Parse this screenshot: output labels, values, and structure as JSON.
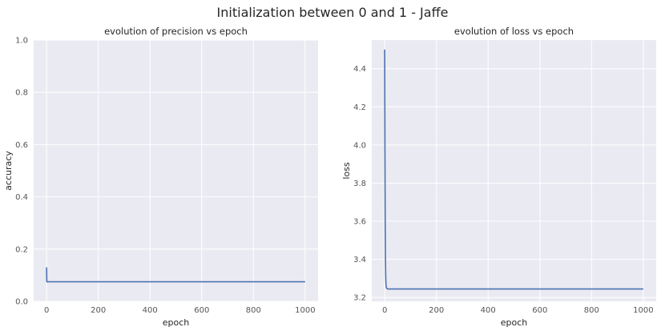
{
  "figure": {
    "title": "Initialization between 0 and 1 - Jaffe",
    "series_color": "#4c72b0",
    "background": "#eaeaf2"
  },
  "chart_data": [
    {
      "type": "line",
      "title": "evolution of precision vs epoch",
      "xlabel": "epoch",
      "ylabel": "accuracy",
      "xlim": [
        -50,
        1050
      ],
      "ylim": [
        0.0,
        1.0
      ],
      "xticks": [
        0,
        200,
        400,
        600,
        800,
        1000
      ],
      "yticks": [
        0.0,
        0.2,
        0.4,
        0.6,
        0.8,
        1.0
      ],
      "ytick_labels": [
        "0.0",
        "0.2",
        "0.4",
        "0.6",
        "0.8",
        "1.0"
      ],
      "grid": true,
      "series": [
        {
          "x": [
            0,
            1,
            2,
            3,
            5,
            10,
            50,
            200,
            400,
            600,
            800,
            1000
          ],
          "y": [
            0.13,
            0.075,
            0.075,
            0.075,
            0.075,
            0.075,
            0.075,
            0.075,
            0.075,
            0.075,
            0.075,
            0.075
          ]
        }
      ]
    },
    {
      "type": "line",
      "title": "evolution of loss vs epoch",
      "xlabel": "epoch",
      "ylabel": "loss",
      "xlim": [
        -50,
        1050
      ],
      "ylim": [
        3.18,
        4.55
      ],
      "xticks": [
        0,
        200,
        400,
        600,
        800,
        1000
      ],
      "yticks": [
        3.2,
        3.4,
        3.6,
        3.8,
        4.0,
        4.2,
        4.4
      ],
      "ytick_labels": [
        "3.2",
        "3.4",
        "3.6",
        "3.8",
        "4.0",
        "4.2",
        "4.4"
      ],
      "grid": true,
      "series": [
        {
          "x": [
            0,
            1,
            2,
            3,
            4,
            5,
            6,
            8,
            10,
            15,
            20,
            50,
            200,
            400,
            600,
            800,
            1000
          ],
          "y": [
            4.5,
            4.0,
            3.6,
            3.4,
            3.31,
            3.27,
            3.255,
            3.248,
            3.246,
            3.245,
            3.245,
            3.245,
            3.245,
            3.245,
            3.245,
            3.245,
            3.245
          ]
        }
      ]
    }
  ]
}
